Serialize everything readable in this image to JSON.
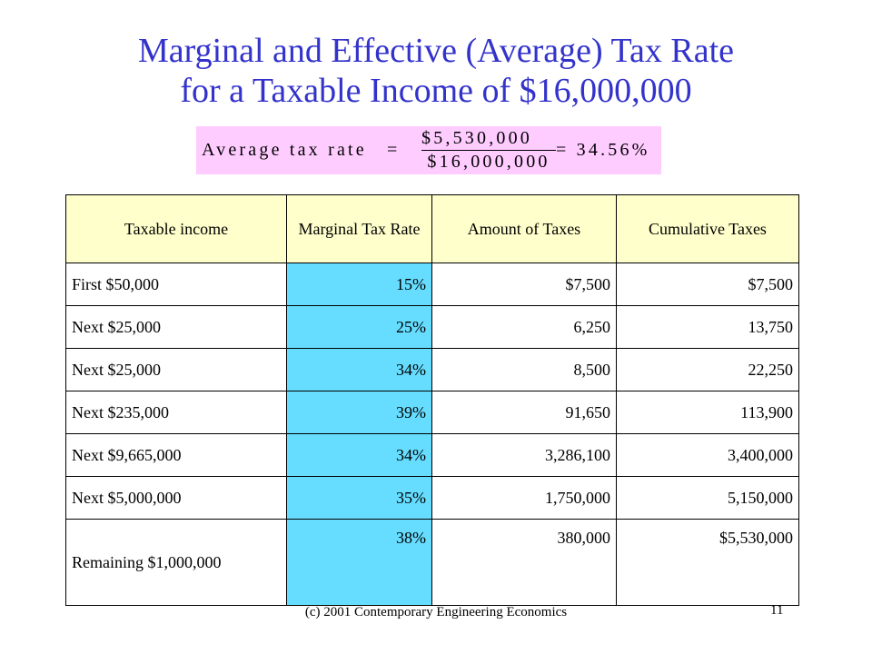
{
  "title": {
    "line1": "Marginal and Effective (Average) Tax Rate",
    "line2": "for a Taxable Income of $16,000,000"
  },
  "formula": {
    "label": "Average tax rate",
    "equals": "=",
    "numerator": "$5,530,000",
    "denominator": "$16,000,000",
    "result": "= 34.56%"
  },
  "table": {
    "headers": [
      "Taxable income",
      "Marginal Tax Rate",
      "Amount of Taxes",
      "Cumulative Taxes"
    ],
    "rows": [
      [
        "First $50,000",
        "15%",
        "$7,500",
        "$7,500"
      ],
      [
        "Next $25,000",
        "25%",
        "6,250",
        "13,750"
      ],
      [
        "Next $25,000",
        "34%",
        "8,500",
        "22,250"
      ],
      [
        "Next $235,000",
        "39%",
        "91,650",
        "113,900"
      ],
      [
        "Next $9,665,000",
        "34%",
        "3,286,100",
        "3,400,000"
      ],
      [
        "Next $5,000,000",
        "35%",
        "1,750,000",
        "5,150,000"
      ],
      [
        "Remaining $1,000,000",
        "38%",
        "380,000",
        "$5,530,000"
      ]
    ]
  },
  "footer": {
    "text": "(c) 2001 Contemporary Engineering Economics",
    "page": "11"
  },
  "colors": {
    "title": "#3333cc",
    "formula_bg": "#ffccff",
    "header_bg": "#ffffcc",
    "rate_col_bg": "#66ddff"
  }
}
